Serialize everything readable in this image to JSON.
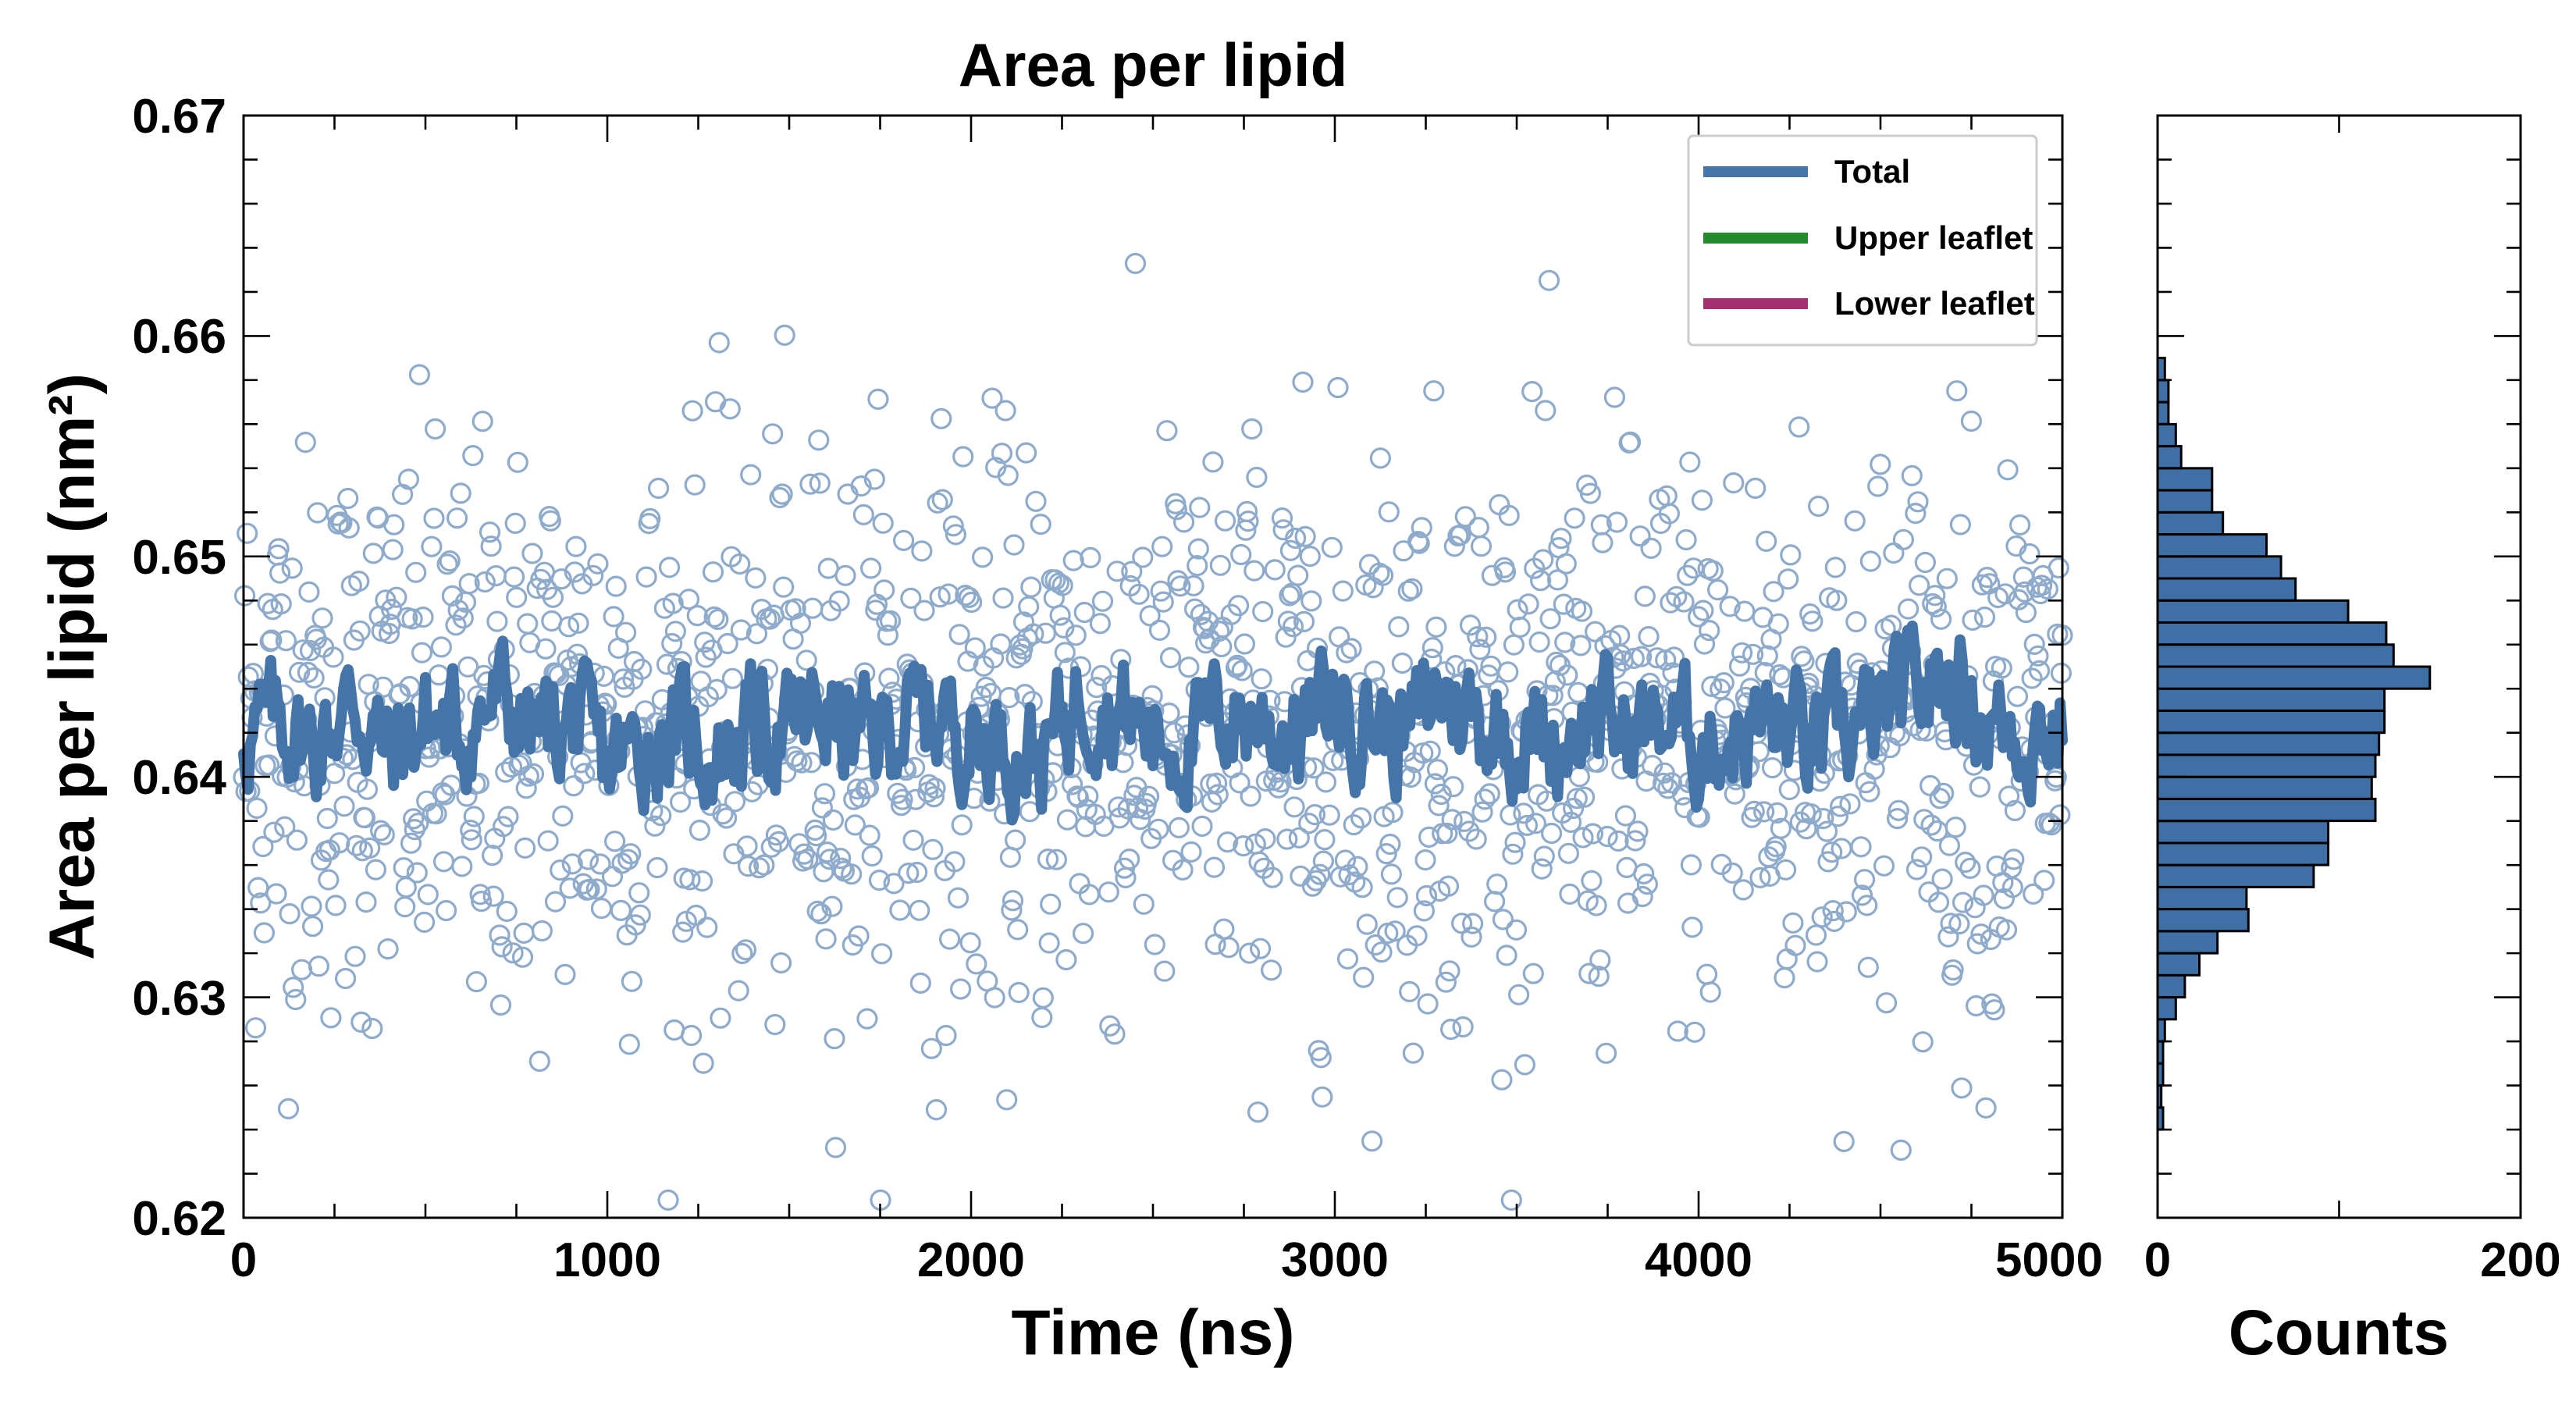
{
  "chart_data": [
    {
      "type": "line+scatter",
      "title": "Area per lipid",
      "xlabel": "Time (ns)",
      "ylabel": "Area per lipid (nm²)",
      "xlim": [
        0,
        5000
      ],
      "ylim": [
        0.62,
        0.67
      ],
      "xticks": [
        "0",
        "1000",
        "2000",
        "3000",
        "4000",
        "5000"
      ],
      "yticks": [
        "0.62",
        "0.63",
        "0.64",
        "0.65",
        "0.66",
        "0.67"
      ],
      "grid": false,
      "legend_position": "top-right",
      "legend": [
        {
          "label": "Total",
          "color": "#4575a8"
        },
        {
          "label": "Upper leaflet",
          "color": "#238b2e"
        },
        {
          "label": "Lower leaflet",
          "color": "#a33070"
        }
      ],
      "series": [
        {
          "name": "Total",
          "kind": "line (running average)",
          "color": "#4575a8",
          "x": [
            0,
            100,
            200,
            300,
            400,
            500,
            600,
            700,
            800,
            900,
            1000,
            1100,
            1200,
            1300,
            1400,
            1500,
            1600,
            1700,
            1800,
            1900,
            2000,
            2100,
            2200,
            2300,
            2400,
            2500,
            2600,
            2700,
            2800,
            2900,
            3000,
            3100,
            3200,
            3300,
            3400,
            3500,
            3600,
            3700,
            3800,
            3900,
            4000,
            4100,
            4200,
            4300,
            4400,
            4500,
            4600,
            4700,
            4800,
            4900,
            5000
          ],
          "y": [
            0.642,
            0.6425,
            0.6415,
            0.6435,
            0.641,
            0.6425,
            0.642,
            0.6435,
            0.642,
            0.6425,
            0.6405,
            0.6415,
            0.642,
            0.641,
            0.6425,
            0.642,
            0.643,
            0.6415,
            0.6425,
            0.643,
            0.642,
            0.6415,
            0.641,
            0.644,
            0.643,
            0.642,
            0.6415,
            0.643,
            0.6425,
            0.642,
            0.6435,
            0.6425,
            0.642,
            0.644,
            0.6425,
            0.642,
            0.6415,
            0.643,
            0.642,
            0.6425,
            0.6415,
            0.642,
            0.6425,
            0.6415,
            0.642,
            0.6425,
            0.644,
            0.6445,
            0.6425,
            0.642,
            0.6425
          ]
        },
        {
          "name": "Total",
          "kind": "scatter (open circles)",
          "color": "#8fabcb",
          "sample_count": 1500,
          "center": 0.642,
          "spread_std": 0.0065,
          "min": 0.6208,
          "max": 0.6655
        }
      ]
    },
    {
      "type": "bar",
      "orientation": "horizontal",
      "xlabel": "Counts",
      "ylabel": "",
      "xlim": [
        0,
        200
      ],
      "xticks": [
        "0",
        "200"
      ],
      "ylim": [
        0.62,
        0.67
      ],
      "color": "#3f6fa5",
      "bin_width": 0.001,
      "bins": [
        {
          "y": 0.6245,
          "count": 3
        },
        {
          "y": 0.6255,
          "count": 2
        },
        {
          "y": 0.6265,
          "count": 3
        },
        {
          "y": 0.6275,
          "count": 3
        },
        {
          "y": 0.6285,
          "count": 4
        },
        {
          "y": 0.6295,
          "count": 10
        },
        {
          "y": 0.6305,
          "count": 15
        },
        {
          "y": 0.6315,
          "count": 23
        },
        {
          "y": 0.6325,
          "count": 33
        },
        {
          "y": 0.6335,
          "count": 50
        },
        {
          "y": 0.6345,
          "count": 49
        },
        {
          "y": 0.6355,
          "count": 86
        },
        {
          "y": 0.6365,
          "count": 94
        },
        {
          "y": 0.6375,
          "count": 94
        },
        {
          "y": 0.6385,
          "count": 120
        },
        {
          "y": 0.6395,
          "count": 118
        },
        {
          "y": 0.6405,
          "count": 120
        },
        {
          "y": 0.6415,
          "count": 122
        },
        {
          "y": 0.6425,
          "count": 125
        },
        {
          "y": 0.6435,
          "count": 125
        },
        {
          "y": 0.6445,
          "count": 150
        },
        {
          "y": 0.6455,
          "count": 130
        },
        {
          "y": 0.6465,
          "count": 126
        },
        {
          "y": 0.6475,
          "count": 105
        },
        {
          "y": 0.6485,
          "count": 76
        },
        {
          "y": 0.6495,
          "count": 68
        },
        {
          "y": 0.6505,
          "count": 60
        },
        {
          "y": 0.6515,
          "count": 36
        },
        {
          "y": 0.6525,
          "count": 30
        },
        {
          "y": 0.6535,
          "count": 30
        },
        {
          "y": 0.6545,
          "count": 13
        },
        {
          "y": 0.6555,
          "count": 10
        },
        {
          "y": 0.6565,
          "count": 6
        },
        {
          "y": 0.6575,
          "count": 6
        },
        {
          "y": 0.6585,
          "count": 4
        }
      ]
    }
  ]
}
